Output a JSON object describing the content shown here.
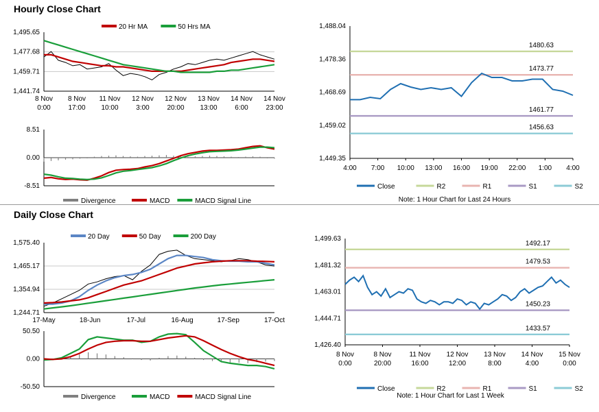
{
  "titles": {
    "hourly": "Hourly Close Chart",
    "daily": "Daily Close Chart"
  },
  "chart_data": [
    {
      "id": "hourly_price",
      "type": "line",
      "ylim": [
        1441.74,
        1495.65
      ],
      "yticks": [
        "1,495.65",
        "1,477.68",
        "1,459.71",
        "1,441.74"
      ],
      "xticks": [
        [
          "8 Nov",
          "0:00"
        ],
        [
          "8 Nov",
          "17:00"
        ],
        [
          "11 Nov",
          "10:00"
        ],
        [
          "12 Nov",
          "3:00"
        ],
        [
          "12 Nov",
          "20:00"
        ],
        [
          "13 Nov",
          "13:00"
        ],
        [
          "14 Nov",
          "6:00"
        ],
        [
          "14 Nov",
          "23:00"
        ]
      ],
      "series": [
        {
          "name": "20 Hr MA",
          "color": "#c00000",
          "values": [
            1475,
            1475,
            1473,
            1471,
            1469,
            1468,
            1467,
            1466,
            1465,
            1465,
            1464,
            1464,
            1463,
            1462,
            1461,
            1460,
            1460,
            1460,
            1460,
            1460,
            1461,
            1462,
            1463,
            1464,
            1465,
            1466,
            1468,
            1469,
            1470,
            1471,
            1471,
            1470,
            1469
          ]
        },
        {
          "name": "50 Hrs MA",
          "color": "#1a9e3a",
          "values": [
            1488,
            1486,
            1484,
            1482,
            1480,
            1478,
            1476,
            1474,
            1472,
            1470,
            1468,
            1466,
            1465,
            1464,
            1463,
            1462,
            1461,
            1460,
            1460,
            1459,
            1459,
            1459,
            1459,
            1459,
            1460,
            1460,
            1461,
            1461,
            1462,
            1463,
            1464,
            1465,
            1466
          ]
        },
        {
          "name": "Price",
          "color": "#000000",
          "values": [
            1473,
            1478,
            1470,
            1468,
            1465,
            1466,
            1462,
            1463,
            1464,
            1467,
            1461,
            1456,
            1458,
            1457,
            1455,
            1452,
            1457,
            1459,
            1462,
            1464,
            1467,
            1466,
            1468,
            1470,
            1471,
            1470,
            1472,
            1474,
            1476,
            1478,
            1475,
            1473,
            1471
          ]
        }
      ]
    },
    {
      "id": "hourly_macd",
      "type": "line",
      "ylim": [
        -8.51,
        8.51
      ],
      "yticks": [
        "8.51",
        "0.00",
        "-8.51"
      ],
      "legend": [
        "Divergence",
        "MACD",
        "MACD Signal Line"
      ],
      "histogram": [
        -1.2,
        -1.0,
        -0.8,
        -0.6,
        -0.5,
        -0.3,
        -0.2,
        0.3,
        0.5,
        0.6,
        0.7,
        0.5,
        0.4,
        0.3,
        0.5,
        0.6,
        0.7,
        0.8,
        0.6,
        0.5,
        0.3,
        0.4,
        0.5,
        0.6,
        0.5,
        0.4,
        0.3,
        0.2,
        0.3,
        0.4,
        0.3,
        -0.2,
        -0.3
      ],
      "series": [
        {
          "name": "MACD",
          "color": "#c00000",
          "values": [
            -6.2,
            -6.0,
            -6.4,
            -6.6,
            -6.5,
            -6.7,
            -6.8,
            -6.2,
            -5.5,
            -4.5,
            -3.8,
            -3.6,
            -3.5,
            -3.3,
            -2.8,
            -2.4,
            -1.8,
            -1.0,
            -0.2,
            0.6,
            1.2,
            1.6,
            2.0,
            2.2,
            2.2,
            2.3,
            2.4,
            2.6,
            3.0,
            3.4,
            3.6,
            3.0,
            2.6
          ]
        },
        {
          "name": "MACD Signal Line",
          "color": "#1a9e3a",
          "values": [
            -5.0,
            -5.3,
            -5.8,
            -6.2,
            -6.3,
            -6.5,
            -6.6,
            -6.5,
            -6.1,
            -5.4,
            -4.6,
            -4.1,
            -3.9,
            -3.6,
            -3.3,
            -3.0,
            -2.5,
            -1.8,
            -0.9,
            -0.1,
            0.6,
            1.1,
            1.5,
            1.8,
            1.9,
            2.0,
            2.1,
            2.3,
            2.6,
            2.9,
            3.2,
            3.2,
            3.0
          ]
        }
      ]
    },
    {
      "id": "hourly_levels",
      "type": "line",
      "ylim": [
        1449.35,
        1488.04
      ],
      "yticks": [
        "1,488.04",
        "1,478.36",
        "1,468.69",
        "1,459.02",
        "1,449.35"
      ],
      "xticks": [
        "4:00",
        "7:00",
        "10:00",
        "13:00",
        "16:00",
        "19:00",
        "22:00",
        "1:00",
        "4:00"
      ],
      "levels": [
        {
          "name": "R2",
          "value": 1480.63,
          "label": "1480.63",
          "color": "#c6d89a"
        },
        {
          "name": "R1",
          "value": 1473.77,
          "label": "1473.77",
          "color": "#e8b4b0"
        },
        {
          "name": "S1",
          "value": 1461.77,
          "label": "1461.77",
          "color": "#a99ac4"
        },
        {
          "name": "S2",
          "value": 1456.63,
          "label": "1456.63",
          "color": "#8ccbd6"
        }
      ],
      "series": [
        {
          "name": "Close",
          "color": "#1f6fb2",
          "values": [
            1466.5,
            1466.5,
            1467.2,
            1466.8,
            1469.5,
            1471.2,
            1470.2,
            1469.5,
            1470.0,
            1469.5,
            1470.0,
            1467.5,
            1471.5,
            1474.2,
            1473.0,
            1473.0,
            1472.0,
            1472.0,
            1472.5,
            1472.5,
            1469.5,
            1469.0,
            1467.8
          ]
        }
      ],
      "legend": [
        "Close",
        "R2",
        "R1",
        "S1",
        "S2"
      ],
      "note": "Note: 1 Hour Chart for Last 24 Hours"
    },
    {
      "id": "daily_price",
      "type": "line",
      "ylim": [
        1244.71,
        1575.4
      ],
      "yticks": [
        "1,575.40",
        "1,465.17",
        "1,354.94",
        "1,244.71"
      ],
      "xticks": [
        "17-May",
        "18-Jun",
        "17-Jul",
        "16-Aug",
        "17-Sep",
        "17-Oct"
      ],
      "series": [
        {
          "name": "20 Day",
          "color": "#5b86c5",
          "values": [
            1285,
            1285,
            1290,
            1300,
            1320,
            1350,
            1375,
            1395,
            1410,
            1420,
            1425,
            1435,
            1450,
            1475,
            1500,
            1515,
            1515,
            1510,
            1505,
            1495,
            1490,
            1488,
            1488,
            1485,
            1485,
            1478,
            1470
          ]
        },
        {
          "name": "50 Day",
          "color": "#c00000",
          "values": [
            1290,
            1292,
            1295,
            1300,
            1305,
            1315,
            1330,
            1345,
            1360,
            1375,
            1385,
            1395,
            1410,
            1425,
            1440,
            1455,
            1465,
            1475,
            1480,
            1485,
            1488,
            1490,
            1490,
            1490,
            1488,
            1487,
            1485
          ]
        },
        {
          "name": "200 Day",
          "color": "#1a9e3a",
          "values": [
            1262,
            1267,
            1272,
            1277,
            1283,
            1289,
            1295,
            1301,
            1307,
            1313,
            1319,
            1325,
            1331,
            1337,
            1343,
            1349,
            1355,
            1361,
            1366,
            1371,
            1376,
            1380,
            1384,
            1388,
            1392,
            1396,
            1400
          ]
        },
        {
          "name": "Price",
          "color": "#000000",
          "values": [
            1275,
            1290,
            1310,
            1330,
            1350,
            1380,
            1390,
            1405,
            1415,
            1420,
            1400,
            1440,
            1470,
            1520,
            1535,
            1540,
            1515,
            1500,
            1495,
            1490,
            1485,
            1490,
            1500,
            1495,
            1485,
            1470,
            1465
          ]
        }
      ]
    },
    {
      "id": "daily_macd",
      "type": "line",
      "ylim": [
        -50.5,
        50.5
      ],
      "yticks": [
        "50.50",
        "0.00",
        "-50.50"
      ],
      "legend": [
        "Divergence",
        "MACD",
        "MACD Signal Line"
      ],
      "histogram": [
        0,
        0,
        2,
        4,
        8,
        12,
        10,
        8,
        5,
        3,
        1,
        -2,
        -3,
        2,
        5,
        6,
        4,
        2,
        -2,
        -4,
        -6,
        -8,
        -7,
        -8,
        -6,
        -5,
        -4
      ],
      "series": [
        {
          "name": "MACD",
          "color": "#1a9e3a",
          "values": [
            -2,
            -1,
            2,
            10,
            18,
            35,
            40,
            38,
            36,
            34,
            34,
            30,
            32,
            40,
            45,
            46,
            44,
            30,
            15,
            5,
            -5,
            -8,
            -10,
            -12,
            -12,
            -14,
            -18
          ]
        },
        {
          "name": "MACD Signal Line",
          "color": "#c00000",
          "values": [
            0,
            -1,
            0,
            4,
            10,
            18,
            25,
            30,
            32,
            33,
            33,
            32,
            32,
            35,
            38,
            40,
            42,
            40,
            33,
            25,
            17,
            10,
            4,
            -1,
            -4,
            -8,
            -12
          ]
        }
      ]
    },
    {
      "id": "daily_levels",
      "type": "line",
      "ylim": [
        1426.4,
        1499.63
      ],
      "yticks": [
        "1,499.63",
        "1,481.32",
        "1,463.01",
        "1,444.71",
        "1,426.40"
      ],
      "xticks": [
        [
          "8 Nov",
          "0:00"
        ],
        [
          "8 Nov",
          "20:00"
        ],
        [
          "11 Nov",
          "16:00"
        ],
        [
          "12 Nov",
          "12:00"
        ],
        [
          "13 Nov",
          "8:00"
        ],
        [
          "14 Nov",
          "4:00"
        ],
        [
          "15 Nov",
          "0:00"
        ]
      ],
      "levels": [
        {
          "name": "R2",
          "value": 1492.17,
          "label": "1492.17",
          "color": "#c6d89a"
        },
        {
          "name": "R1",
          "value": 1479.53,
          "label": "1479.53",
          "color": "#e8b4b0"
        },
        {
          "name": "S1",
          "value": 1450.23,
          "label": "1450.23",
          "color": "#a99ac4"
        },
        {
          "name": "S2",
          "value": 1433.57,
          "label": "1433.57",
          "color": "#8ccbd6"
        }
      ],
      "series": [
        {
          "name": "Close",
          "color": "#1f6fb2",
          "values": [
            1468,
            1471,
            1473,
            1470,
            1474,
            1466,
            1461,
            1463,
            1460,
            1465,
            1459,
            1461,
            1463,
            1462,
            1465,
            1464,
            1458,
            1456,
            1455,
            1457,
            1456,
            1454,
            1456,
            1456,
            1455,
            1458,
            1457,
            1454,
            1456,
            1455,
            1451,
            1455,
            1454,
            1456,
            1458,
            1461,
            1460,
            1457,
            1459,
            1463,
            1465,
            1462,
            1464,
            1466,
            1467,
            1470,
            1473,
            1469,
            1471,
            1468,
            1466
          ]
        }
      ],
      "legend": [
        "Close",
        "R2",
        "R1",
        "S1",
        "S2"
      ],
      "note": "Note: 1 Hour Chart for Last 1 Week"
    }
  ],
  "legends": {
    "hourly_price": [
      "20 Hr MA",
      "50 Hrs MA"
    ],
    "daily_price": [
      "20 Day",
      "50 Day",
      "200 Day"
    ]
  },
  "colors": {
    "grid": "#c8c8c8",
    "hist": "#808080"
  }
}
